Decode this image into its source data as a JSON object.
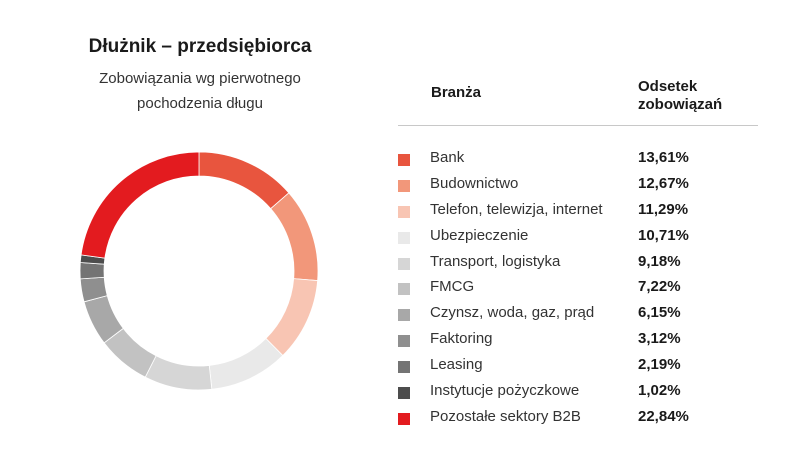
{
  "header": {
    "title": "Dłużnik – przedsiębiorca",
    "subtitle_line1": "Zobowiązania wg pierwotnego",
    "subtitle_line2": "pochodzenia długu"
  },
  "table": {
    "col_industry": "Branża",
    "col_share_line1": "Odsetek",
    "col_share_line2": "zobowiązań"
  },
  "chart_data": {
    "type": "pie",
    "style": "donut",
    "title": "Dłużnik – przedsiębiorca",
    "subtitle": "Zobowiązania wg pierwotnego pochodzenia długu",
    "unit": "%",
    "legend_placement": "right",
    "categories": [
      "Bank",
      "Budownictwo",
      "Telefon, telewizja, internet",
      "Ubezpieczenie",
      "Transport, logistyka",
      "FMCG",
      "Czynsz, woda, gaz, prąd",
      "Faktoring",
      "Leasing",
      "Instytucje pożyczkowe",
      "Pozostałe sektory B2B"
    ],
    "values": [
      13.61,
      12.67,
      11.29,
      10.71,
      9.18,
      7.22,
      6.15,
      3.12,
      2.19,
      1.02,
      22.84
    ],
    "value_labels": [
      "13,61%",
      "12,67%",
      "11,29%",
      "10,71%",
      "9,18%",
      "7,22%",
      "6,15%",
      "3,12%",
      "2,19%",
      "1,02%",
      "22,84%"
    ],
    "colors": [
      "#e8553e",
      "#f2977a",
      "#f8c5b3",
      "#e9e9e9",
      "#d6d6d6",
      "#c2c2c2",
      "#a8a8a8",
      "#8f8f8f",
      "#747474",
      "#4d4d4d",
      "#e31b1f"
    ]
  }
}
